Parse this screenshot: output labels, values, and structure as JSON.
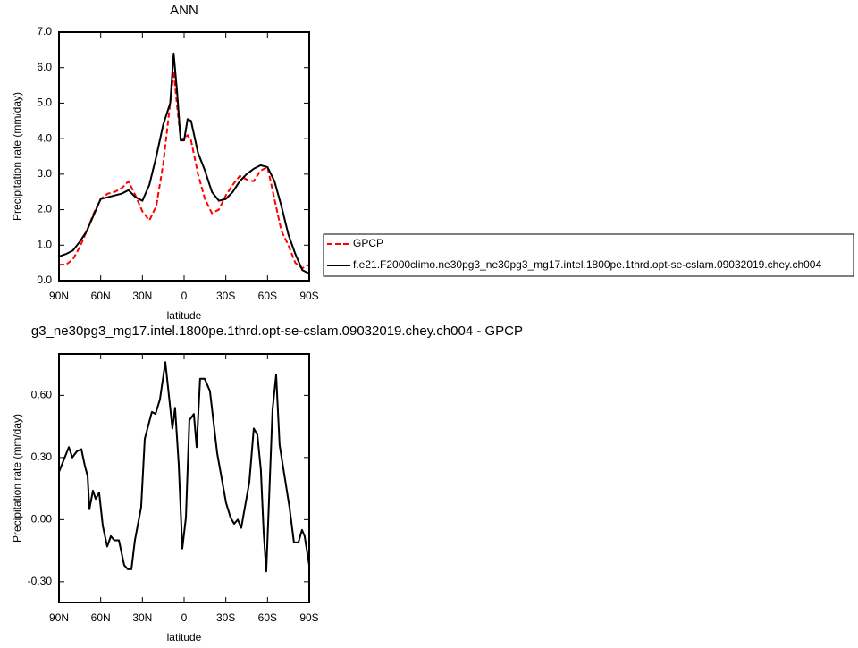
{
  "chart_data": [
    {
      "type": "line",
      "title": "ANN",
      "xlabel": "latitude",
      "ylabel": "Precipitation rate (mm/day)",
      "x": [
        90,
        85,
        80,
        75,
        70,
        65,
        60,
        55,
        50,
        45,
        40,
        35,
        30,
        25,
        20,
        15,
        10,
        7.5,
        5,
        2.5,
        0,
        -2.5,
        -5,
        -10,
        -15,
        -20,
        -25,
        -30,
        -35,
        -40,
        -45,
        -50,
        -55,
        -60,
        -65,
        -70,
        -75,
        -80,
        -85,
        -90
      ],
      "series": [
        {
          "name": "GPCP",
          "color": "#ff0000",
          "dashed": true,
          "values": [
            0.45,
            0.45,
            0.6,
            0.95,
            1.4,
            1.9,
            2.3,
            2.45,
            2.5,
            2.6,
            2.8,
            2.4,
            1.95,
            1.7,
            2.1,
            3.3,
            5.0,
            5.9,
            4.9,
            4.0,
            4.0,
            4.1,
            3.95,
            3.0,
            2.3,
            1.9,
            2.0,
            2.4,
            2.7,
            2.95,
            2.85,
            2.8,
            3.1,
            3.2,
            2.3,
            1.4,
            1.0,
            0.5,
            0.35,
            0.45
          ]
        },
        {
          "name": "f.e21.F2000climo.ne30pg3_ne30pg3_mg17.intel.1800pe.1thrd.opt-se-cslam.09032019.chey.ch004",
          "color": "#000000",
          "dashed": false,
          "values": [
            0.68,
            0.75,
            0.85,
            1.1,
            1.4,
            1.85,
            2.3,
            2.35,
            2.4,
            2.45,
            2.55,
            2.35,
            2.25,
            2.7,
            3.5,
            4.4,
            5.0,
            6.4,
            5.3,
            3.95,
            3.95,
            4.55,
            4.5,
            3.6,
            3.1,
            2.5,
            2.25,
            2.3,
            2.5,
            2.8,
            3.0,
            3.15,
            3.25,
            3.2,
            2.8,
            2.1,
            1.3,
            0.75,
            0.3,
            0.2
          ]
        }
      ],
      "xlim": [
        90,
        -90
      ],
      "xticks": [
        {
          "value": 90,
          "label": "90N"
        },
        {
          "value": 60,
          "label": "60N"
        },
        {
          "value": 30,
          "label": "30N"
        },
        0,
        {
          "value": -30,
          "label": "30S"
        },
        {
          "value": -60,
          "label": "60S"
        },
        {
          "value": -90,
          "label": "90S"
        }
      ],
      "ylim": [
        0,
        7
      ],
      "yticks": [
        {
          "value": 0,
          "label": "0.0"
        },
        {
          "value": 1,
          "label": "1.0"
        },
        {
          "value": 2,
          "label": "2.0"
        },
        {
          "value": 3,
          "label": "3.0"
        },
        {
          "value": 4,
          "label": "4.0"
        },
        {
          "value": 5,
          "label": "5.0"
        },
        {
          "value": 6,
          "label": "6.0"
        },
        {
          "value": 7,
          "label": "7.0"
        }
      ],
      "legend": "right"
    },
    {
      "type": "line",
      "title": "g3_ne30pg3_mg17.intel.1800pe.1thrd.opt-se-cslam.09032019.chey.ch004 - GPCP",
      "xlabel": "latitude",
      "ylabel": "Precipitation rate (mm/day)",
      "x": [
        90,
        82.9,
        80.4,
        77.1,
        73.9,
        71.4,
        69.4,
        68.1,
        65.6,
        63.6,
        61.1,
        58.5,
        55.3,
        52.7,
        50.2,
        46.9,
        43.1,
        40.5,
        37.9,
        35.4,
        30.9,
        28.3,
        23.2,
        20.6,
        17.4,
        13.5,
        8.4,
        6.5,
        3.9,
        1.3,
        -1.3,
        -3.8,
        -7.0,
        -9.0,
        -11.5,
        -14.8,
        -18.6,
        -23.8,
        -30.2,
        -33.4,
        -36.0,
        -38.6,
        -41.1,
        -46.9,
        -50.1,
        -52.7,
        -55.2,
        -57.2,
        -59.1,
        -63.6,
        -66.2,
        -68.7,
        -72.0,
        -75.8,
        -79.0,
        -82.2,
        -84.8,
        -86.7,
        -90
      ],
      "series": [
        {
          "color": "#000000",
          "dashed": false,
          "values": [
            0.23,
            0.35,
            0.3,
            0.33,
            0.34,
            0.26,
            0.21,
            0.05,
            0.14,
            0.1,
            0.13,
            -0.03,
            -0.13,
            -0.08,
            -0.1,
            -0.1,
            -0.22,
            -0.24,
            -0.24,
            -0.1,
            0.06,
            0.39,
            0.52,
            0.51,
            0.58,
            0.76,
            0.44,
            0.54,
            0.27,
            -0.14,
            0.01,
            0.48,
            0.51,
            0.35,
            0.68,
            0.68,
            0.62,
            0.32,
            0.08,
            0.01,
            -0.02,
            0.0,
            -0.04,
            0.18,
            0.44,
            0.41,
            0.24,
            -0.06,
            -0.25,
            0.53,
            0.7,
            0.36,
            0.22,
            0.06,
            -0.11,
            -0.11,
            -0.05,
            -0.08,
            -0.22
          ]
        }
      ],
      "xlim": [
        90,
        -90
      ],
      "xticks": [
        {
          "value": 90,
          "label": "90N"
        },
        {
          "value": 60,
          "label": "60N"
        },
        {
          "value": 30,
          "label": "30N"
        },
        0,
        {
          "value": -30,
          "label": "30S"
        },
        {
          "value": -60,
          "label": "60S"
        },
        {
          "value": -90,
          "label": "90S"
        }
      ],
      "ylim": [
        -0.4,
        0.8
      ],
      "yticks": [
        {
          "value": -0.3,
          "label": "-0.30"
        },
        {
          "value": 0,
          "label": "0.00"
        },
        {
          "value": 0.3,
          "label": "0.30"
        },
        {
          "value": 0.6,
          "label": "0.60"
        }
      ]
    }
  ]
}
